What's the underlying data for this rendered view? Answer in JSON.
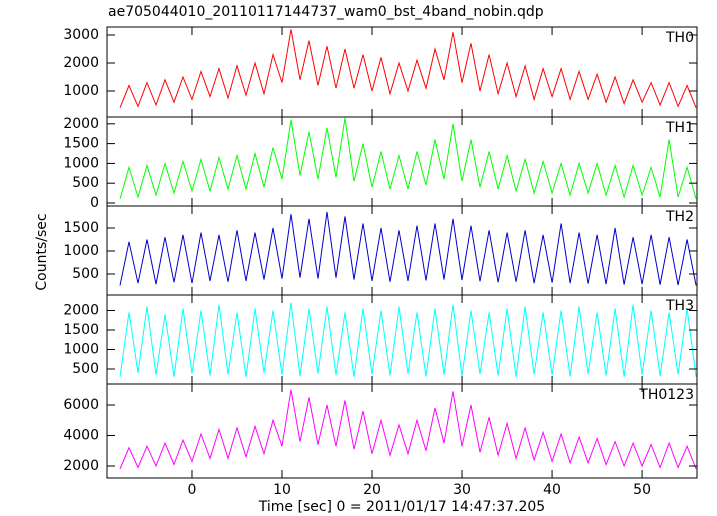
{
  "chart_data": [
    {
      "type": "line",
      "title": "ae705044010_20110117144737_wam0_bst_4band_nobin.qdp",
      "x": [
        -8,
        -7,
        -6,
        -5,
        -4,
        -3,
        -2,
        -1,
        0,
        1,
        2,
        3,
        4,
        5,
        6,
        7,
        8,
        9,
        10,
        11,
        12,
        13,
        14,
        15,
        16,
        17,
        18,
        19,
        20,
        21,
        22,
        23,
        24,
        25,
        26,
        27,
        28,
        29,
        30,
        31,
        32,
        33,
        34,
        35,
        36,
        37,
        38,
        39,
        40,
        41,
        42,
        43,
        44,
        45,
        46,
        47,
        48,
        49,
        50,
        51,
        52,
        53,
        54,
        55,
        56
      ],
      "series": [
        {
          "name": "TH0",
          "color": "#ff0000",
          "values": [
            400,
            1200,
            450,
            1300,
            500,
            1400,
            600,
            1500,
            700,
            1700,
            800,
            1800,
            750,
            1900,
            850,
            2000,
            900,
            2300,
            1300,
            3200,
            1400,
            2800,
            1200,
            2600,
            1100,
            2500,
            1100,
            2300,
            1000,
            2200,
            900,
            2000,
            1000,
            2100,
            1100,
            2500,
            1400,
            3100,
            1300,
            2700,
            1000,
            2300,
            900,
            2000,
            800,
            1900,
            700,
            1800,
            800,
            1800,
            700,
            1700,
            700,
            1600,
            600,
            1500,
            550,
            1400,
            600,
            1300,
            500,
            1300,
            450,
            1200,
            400
          ]
        }
      ],
      "xlim": [
        -9.44,
        56.1
      ],
      "xticks": [
        0,
        10,
        20,
        30,
        40,
        50
      ],
      "ylim": [
        71,
        3286
      ],
      "yticks": [
        1000,
        2000,
        3000
      ]
    },
    {
      "type": "line",
      "x": [
        -8,
        -7,
        -6,
        -5,
        -4,
        -3,
        -2,
        -1,
        0,
        1,
        2,
        3,
        4,
        5,
        6,
        7,
        8,
        9,
        10,
        11,
        12,
        13,
        14,
        15,
        16,
        17,
        18,
        19,
        20,
        21,
        22,
        23,
        24,
        25,
        26,
        27,
        28,
        29,
        30,
        31,
        32,
        33,
        34,
        35,
        36,
        37,
        38,
        39,
        40,
        41,
        42,
        43,
        44,
        45,
        46,
        47,
        48,
        49,
        50,
        51,
        52,
        53,
        54,
        55,
        56
      ],
      "series": [
        {
          "name": "TH1",
          "color": "#00ff00",
          "values": [
            100,
            900,
            150,
            950,
            200,
            1000,
            250,
            1050,
            300,
            1100,
            300,
            1150,
            350,
            1200,
            350,
            1250,
            400,
            1400,
            600,
            2100,
            700,
            1800,
            600,
            1900,
            650,
            2150,
            550,
            1500,
            400,
            1300,
            350,
            1200,
            350,
            1300,
            450,
            1600,
            600,
            2000,
            550,
            1600,
            400,
            1300,
            350,
            1200,
            300,
            1100,
            250,
            1050,
            250,
            1000,
            200,
            1000,
            250,
            1000,
            200,
            950,
            150,
            950,
            200,
            900,
            150,
            1600,
            150,
            900,
            100
          ]
        }
      ],
      "xlim": [
        -9.44,
        56.1
      ],
      "xticks": [
        0,
        10,
        20,
        30,
        40,
        50
      ],
      "ylim": [
        -76,
        2172
      ],
      "yticks": [
        0,
        500,
        1000,
        1500,
        2000
      ]
    },
    {
      "type": "line",
      "y_label": "Counts/sec",
      "x": [
        -8,
        -7,
        -6,
        -5,
        -4,
        -3,
        -2,
        -1,
        0,
        1,
        2,
        3,
        4,
        5,
        6,
        7,
        8,
        9,
        10,
        11,
        12,
        13,
        14,
        15,
        16,
        17,
        18,
        19,
        20,
        21,
        22,
        23,
        24,
        25,
        26,
        27,
        28,
        29,
        30,
        31,
        32,
        33,
        34,
        35,
        36,
        37,
        38,
        39,
        40,
        41,
        42,
        43,
        44,
        45,
        46,
        47,
        48,
        49,
        50,
        51,
        52,
        53,
        54,
        55,
        56
      ],
      "series": [
        {
          "name": "TH2",
          "color": "#0000cc",
          "values": [
            250,
            1200,
            300,
            1250,
            280,
            1300,
            320,
            1350,
            300,
            1400,
            350,
            1350,
            330,
            1450,
            350,
            1400,
            380,
            1500,
            400,
            1800,
            420,
            1700,
            400,
            1850,
            420,
            1750,
            380,
            1600,
            350,
            1500,
            330,
            1450,
            350,
            1550,
            360,
            1600,
            380,
            1700,
            370,
            1550,
            340,
            1450,
            320,
            1400,
            330,
            1450,
            300,
            1350,
            310,
            1600,
            300,
            1400,
            290,
            1350,
            280,
            1500,
            270,
            1300,
            280,
            1350,
            270,
            1300,
            260,
            1250,
            250
          ]
        }
      ],
      "xlim": [
        -9.44,
        56.1
      ],
      "xticks": [
        0,
        10,
        20,
        30,
        40,
        50
      ],
      "ylim": [
        43,
        1978
      ],
      "yticks": [
        500,
        1000,
        1500
      ]
    },
    {
      "type": "line",
      "x": [
        -8,
        -7,
        -6,
        -5,
        -4,
        -3,
        -2,
        -1,
        0,
        1,
        2,
        3,
        4,
        5,
        6,
        7,
        8,
        9,
        10,
        11,
        12,
        13,
        14,
        15,
        16,
        17,
        18,
        19,
        20,
        21,
        22,
        23,
        24,
        25,
        26,
        27,
        28,
        29,
        30,
        31,
        32,
        33,
        34,
        35,
        36,
        37,
        38,
        39,
        40,
        41,
        42,
        43,
        44,
        45,
        46,
        47,
        48,
        49,
        50,
        51,
        52,
        53,
        54,
        55,
        56
      ],
      "series": [
        {
          "name": "TH3",
          "color": "#00ffff",
          "values": [
            300,
            1950,
            400,
            2100,
            350,
            1900,
            300,
            2050,
            380,
            2000,
            330,
            2150,
            360,
            1950,
            300,
            2050,
            400,
            2000,
            350,
            2200,
            320,
            2050,
            380,
            2100,
            340,
            1950,
            300,
            2050,
            360,
            2000,
            330,
            2100,
            380,
            1950,
            310,
            2050,
            350,
            2150,
            320,
            2000,
            370,
            1950,
            330,
            2050,
            300,
            2100,
            360,
            1950,
            340,
            2000,
            310,
            2100,
            370,
            1950,
            330,
            2050,
            300,
            2150,
            350,
            2000,
            320,
            1950,
            360,
            2050,
            300
          ]
        }
      ],
      "xlim": [
        -9.44,
        56.1
      ],
      "xticks": [
        0,
        10,
        20,
        30,
        40,
        50
      ],
      "ylim": [
        115,
        2397
      ],
      "yticks": [
        500,
        1000,
        1500,
        2000
      ]
    },
    {
      "type": "line",
      "x_label": "Time [sec] 0 = 2011/01/17 14:47:37.205",
      "x": [
        -8,
        -7,
        -6,
        -5,
        -4,
        -3,
        -2,
        -1,
        0,
        1,
        2,
        3,
        4,
        5,
        6,
        7,
        8,
        9,
        10,
        11,
        12,
        13,
        14,
        15,
        16,
        17,
        18,
        19,
        20,
        21,
        22,
        23,
        24,
        25,
        26,
        27,
        28,
        29,
        30,
        31,
        32,
        33,
        34,
        35,
        36,
        37,
        38,
        39,
        40,
        41,
        42,
        43,
        44,
        45,
        46,
        47,
        48,
        49,
        50,
        51,
        52,
        53,
        54,
        55,
        56
      ],
      "series": [
        {
          "name": "TH0123",
          "color": "#ff00ff",
          "values": [
            1800,
            3200,
            1900,
            3300,
            2000,
            3500,
            2100,
            3700,
            2300,
            4100,
            2500,
            4400,
            2500,
            4500,
            2600,
            4600,
            2800,
            5000,
            3300,
            7000,
            3600,
            6500,
            3400,
            6000,
            3300,
            6300,
            3100,
            5600,
            2800,
            5000,
            2700,
            4700,
            2800,
            5000,
            3000,
            5800,
            3500,
            6900,
            3300,
            6000,
            2900,
            5200,
            2700,
            4800,
            2500,
            4500,
            2400,
            4200,
            2300,
            4100,
            2200,
            3900,
            2200,
            3800,
            2100,
            3600,
            2000,
            3500,
            2000,
            3400,
            1900,
            3500,
            1900,
            3300,
            1800
          ]
        }
      ],
      "xlim": [
        -9.44,
        56.1
      ],
      "xticks": [
        0,
        10,
        20,
        30,
        40,
        50
      ],
      "ylim": [
        1213,
        7377
      ],
      "yticks": [
        2000,
        4000,
        6000
      ]
    }
  ]
}
